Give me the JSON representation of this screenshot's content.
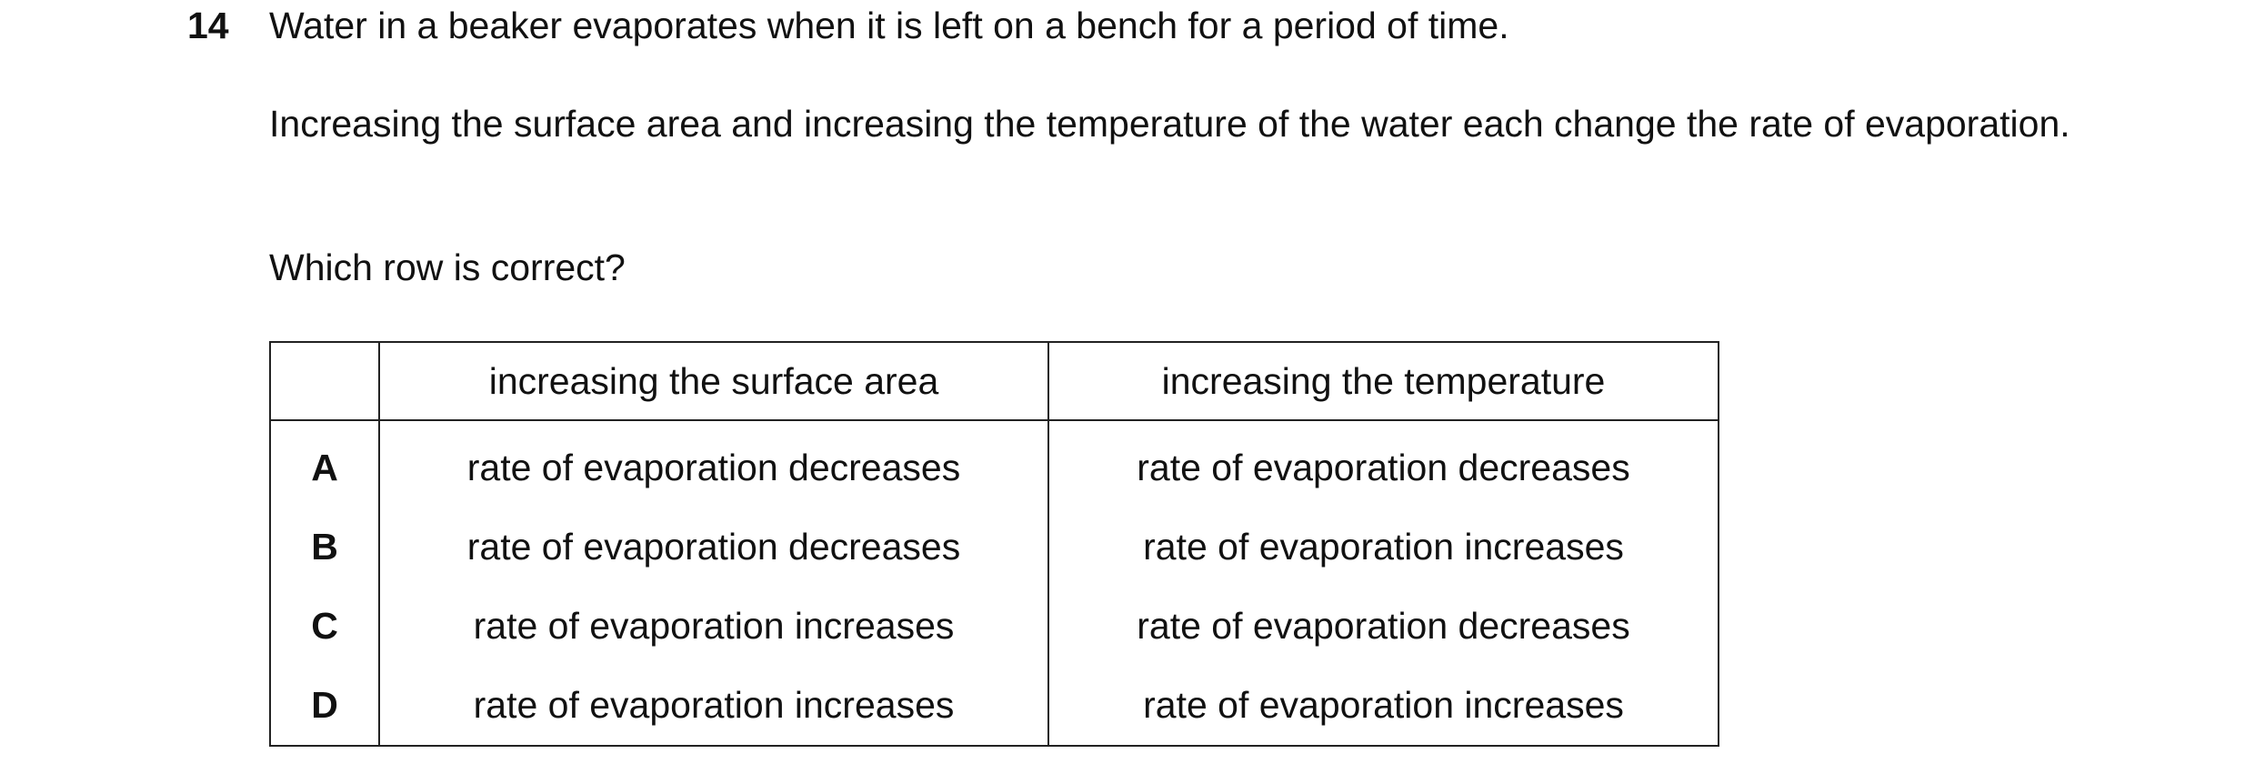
{
  "question": {
    "number": "14",
    "stem": "Water in a beaker evaporates when it is left on a bench for a period of time.",
    "paragraph": "Increasing the surface area and increasing the temperature of the water each change the rate of evaporation.",
    "prompt": "Which row is correct?"
  },
  "table": {
    "headers": [
      "increasing the surface area",
      "increasing the temperature"
    ],
    "rows": [
      [
        "A",
        "rate of evaporation decreases",
        "rate of evaporation decreases"
      ],
      [
        "B",
        "rate of evaporation decreases",
        "rate of evaporation increases"
      ],
      [
        "C",
        "rate of evaporation increases",
        "rate of evaporation decreases"
      ],
      [
        "D",
        "rate of evaporation increases",
        "rate of evaporation increases"
      ]
    ]
  }
}
